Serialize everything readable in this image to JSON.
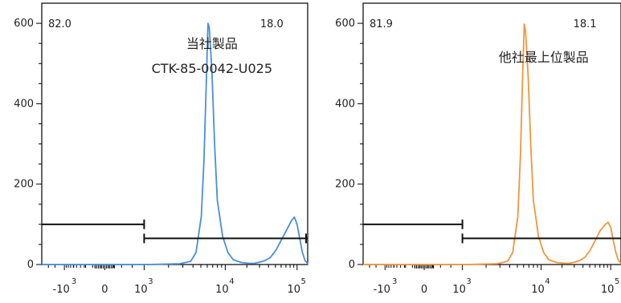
{
  "chart_data": [
    {
      "type": "histogram",
      "series_color": "#4a8fd6",
      "ylim": [
        0,
        650
      ],
      "yticks": [
        0,
        200,
        400,
        600
      ],
      "x_tick_labels": [
        {
          "base": "-10",
          "exp": "3"
        },
        {
          "base": "0",
          "exp": ""
        },
        {
          "base": "10",
          "exp": "3"
        },
        {
          "base": "10",
          "exp": "4"
        },
        {
          "base": "10",
          "exp": "5"
        }
      ],
      "gates": [
        {
          "label": "82.0",
          "y": 100
        },
        {
          "label": "18.0",
          "y": 65
        }
      ],
      "annotations": [
        "当社製品",
        "CTK-85-0042-U025"
      ],
      "curve": [
        [
          0.0,
          0
        ],
        [
          0.4,
          0
        ],
        [
          0.52,
          2
        ],
        [
          0.56,
          8
        ],
        [
          0.58,
          30
        ],
        [
          0.6,
          120
        ],
        [
          0.61,
          260
        ],
        [
          0.62,
          480
        ],
        [
          0.625,
          600
        ],
        [
          0.63,
          590
        ],
        [
          0.64,
          480
        ],
        [
          0.65,
          300
        ],
        [
          0.66,
          160
        ],
        [
          0.68,
          70
        ],
        [
          0.7,
          30
        ],
        [
          0.72,
          12
        ],
        [
          0.75,
          5
        ],
        [
          0.78,
          3
        ],
        [
          0.8,
          3
        ],
        [
          0.82,
          6
        ],
        [
          0.84,
          10
        ],
        [
          0.86,
          18
        ],
        [
          0.88,
          35
        ],
        [
          0.9,
          60
        ],
        [
          0.92,
          85
        ],
        [
          0.94,
          110
        ],
        [
          0.95,
          118
        ],
        [
          0.96,
          100
        ],
        [
          0.97,
          65
        ],
        [
          0.98,
          30
        ],
        [
          0.99,
          10
        ],
        [
          1.0,
          3
        ],
        [
          1.02,
          1
        ],
        [
          1.1,
          0
        ]
      ]
    },
    {
      "type": "histogram",
      "series_color": "#f0963c",
      "ylim": [
        0,
        650
      ],
      "yticks": [
        0,
        200,
        400,
        600
      ],
      "x_tick_labels": [
        {
          "base": "-10",
          "exp": "3"
        },
        {
          "base": "0",
          "exp": ""
        },
        {
          "base": "10",
          "exp": "3"
        },
        {
          "base": "10",
          "exp": "4"
        },
        {
          "base": "10",
          "exp": "5"
        }
      ],
      "gates": [
        {
          "label": "81.9",
          "y": 100
        },
        {
          "label": "18.1",
          "y": 65
        }
      ],
      "annotations": [
        "他社最上位製品"
      ],
      "curve": [
        [
          0.0,
          0
        ],
        [
          0.4,
          0
        ],
        [
          0.52,
          2
        ],
        [
          0.56,
          8
        ],
        [
          0.58,
          30
        ],
        [
          0.6,
          120
        ],
        [
          0.61,
          270
        ],
        [
          0.62,
          500
        ],
        [
          0.625,
          598
        ],
        [
          0.63,
          580
        ],
        [
          0.64,
          470
        ],
        [
          0.65,
          300
        ],
        [
          0.66,
          160
        ],
        [
          0.68,
          70
        ],
        [
          0.7,
          30
        ],
        [
          0.72,
          12
        ],
        [
          0.75,
          5
        ],
        [
          0.78,
          3
        ],
        [
          0.8,
          3
        ],
        [
          0.82,
          6
        ],
        [
          0.84,
          10
        ],
        [
          0.86,
          18
        ],
        [
          0.88,
          35
        ],
        [
          0.9,
          60
        ],
        [
          0.92,
          85
        ],
        [
          0.94,
          100
        ],
        [
          0.95,
          105
        ],
        [
          0.96,
          92
        ],
        [
          0.97,
          60
        ],
        [
          0.98,
          30
        ],
        [
          0.99,
          10
        ],
        [
          1.0,
          3
        ],
        [
          1.02,
          1
        ],
        [
          1.1,
          0
        ]
      ]
    }
  ]
}
